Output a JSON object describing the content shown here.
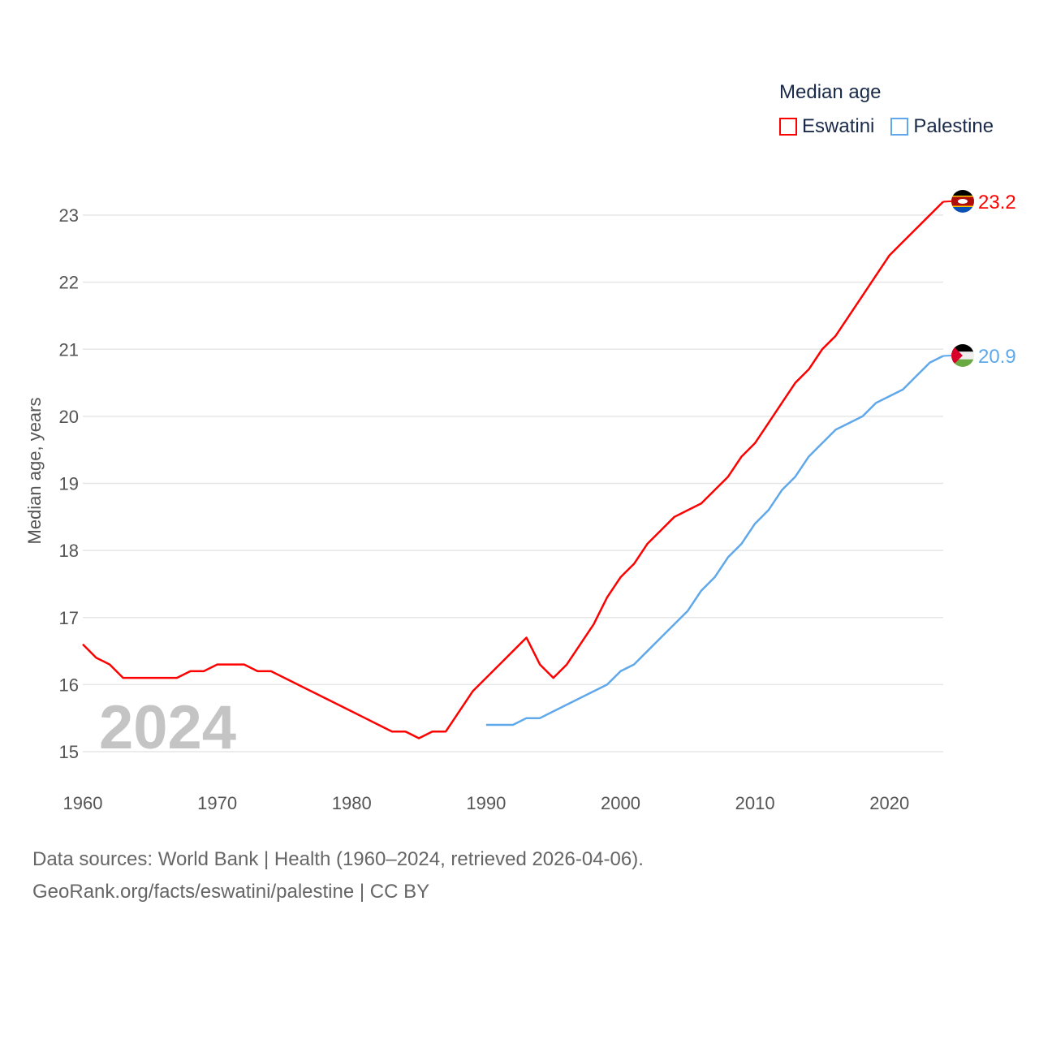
{
  "chart_data": {
    "type": "line",
    "title": "Median age",
    "ylabel": "Median age, years",
    "xlabel": "",
    "xlim": [
      1960,
      2024
    ],
    "ylim": [
      15,
      23
    ],
    "x_ticks": [
      1960,
      1970,
      1980,
      1990,
      2000,
      2010,
      2020
    ],
    "y_ticks": [
      15,
      16,
      17,
      18,
      19,
      20,
      21,
      22,
      23
    ],
    "grid": "horizontal",
    "legend_position": "top-right",
    "year_watermark": "2024",
    "series": [
      {
        "name": "Eswatini",
        "color": "#ff0000",
        "end_label": "23.2",
        "x": [
          1960,
          1961,
          1962,
          1963,
          1964,
          1965,
          1966,
          1967,
          1968,
          1969,
          1970,
          1971,
          1972,
          1973,
          1974,
          1975,
          1976,
          1977,
          1978,
          1979,
          1980,
          1981,
          1982,
          1983,
          1984,
          1985,
          1986,
          1987,
          1988,
          1989,
          1990,
          1991,
          1992,
          1993,
          1994,
          1995,
          1996,
          1997,
          1998,
          1999,
          2000,
          2001,
          2002,
          2003,
          2004,
          2005,
          2006,
          2007,
          2008,
          2009,
          2010,
          2011,
          2012,
          2013,
          2014,
          2015,
          2016,
          2017,
          2018,
          2019,
          2020,
          2021,
          2022,
          2023,
          2024
        ],
        "values": [
          16.6,
          16.4,
          16.3,
          16.1,
          16.1,
          16.1,
          16.1,
          16.1,
          16.2,
          16.2,
          16.3,
          16.3,
          16.3,
          16.2,
          16.2,
          16.1,
          16.0,
          15.9,
          15.8,
          15.7,
          15.6,
          15.5,
          15.4,
          15.3,
          15.3,
          15.2,
          15.3,
          15.3,
          15.6,
          15.9,
          16.1,
          16.3,
          16.5,
          16.7,
          16.3,
          16.1,
          16.3,
          16.6,
          16.9,
          17.3,
          17.6,
          17.8,
          18.1,
          18.3,
          18.5,
          18.6,
          18.7,
          18.9,
          19.1,
          19.4,
          19.6,
          19.9,
          20.2,
          20.5,
          20.7,
          21.0,
          21.2,
          21.5,
          21.8,
          22.1,
          22.4,
          22.6,
          22.8,
          23.0,
          23.2
        ]
      },
      {
        "name": "Palestine",
        "color": "#5fa8ea",
        "end_label": "20.9",
        "x": [
          1990,
          1991,
          1992,
          1993,
          1994,
          1995,
          1996,
          1997,
          1998,
          1999,
          2000,
          2001,
          2002,
          2003,
          2004,
          2005,
          2006,
          2007,
          2008,
          2009,
          2010,
          2011,
          2012,
          2013,
          2014,
          2015,
          2016,
          2017,
          2018,
          2019,
          2020,
          2021,
          2022,
          2023,
          2024
        ],
        "values": [
          15.4,
          15.4,
          15.4,
          15.5,
          15.5,
          15.6,
          15.7,
          15.8,
          15.9,
          16.0,
          16.2,
          16.3,
          16.5,
          16.7,
          16.9,
          17.1,
          17.4,
          17.6,
          17.9,
          18.1,
          18.4,
          18.6,
          18.9,
          19.1,
          19.4,
          19.6,
          19.8,
          19.9,
          20.0,
          20.2,
          20.3,
          20.4,
          20.6,
          20.8,
          20.9
        ]
      }
    ]
  },
  "footer": {
    "source": "Data sources: World Bank | Health (1960–2024, retrieved 2026-04-06).",
    "link": "GeoRank.org/facts/eswatini/palestine | CC BY"
  }
}
